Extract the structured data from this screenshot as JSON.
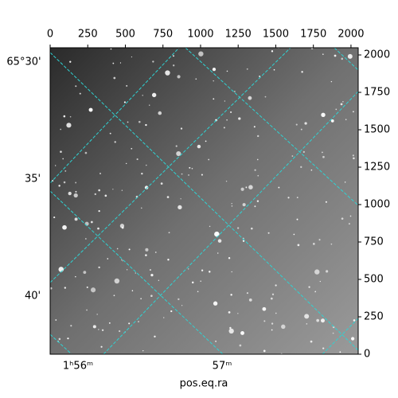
{
  "chart_data": {
    "type": "image",
    "xlabel": "pos.eq.ra",
    "xlim": [
      0,
      2048
    ],
    "ylim": [
      0,
      2048
    ],
    "xticks": [
      0,
      250,
      500,
      750,
      1000,
      1250,
      1500,
      1750,
      2000
    ],
    "yticks": [
      0,
      250,
      500,
      750,
      1000,
      1250,
      1500,
      1750,
      2000
    ],
    "dec_tick_labels": [
      "65°30'",
      "35'",
      "40'"
    ],
    "ra_tick_labels": [
      "1ʰ56ᵐ",
      "57ᵐ"
    ],
    "grid_color": "#2fd3d3"
  }
}
